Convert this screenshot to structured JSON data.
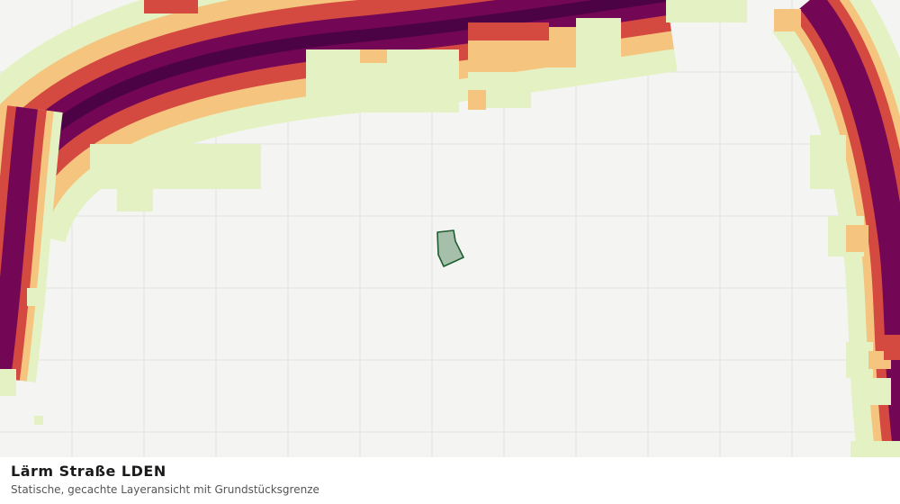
{
  "map": {
    "background_color": "#f4f5f3",
    "grid_color": "#e2e4e0",
    "noise_colors": {
      "very_low": "#e4f2c3",
      "low": "#f5c47e",
      "medium": "#d44a40",
      "high": "#740656",
      "very_high": "#4c0346"
    },
    "parcel_fill": "#a6bfaa",
    "parcel_stroke": "#1e5e2e"
  },
  "footer": {
    "title": "Lärm Straße LDEN",
    "subtitle": "Statische, gecachte Layeransicht mit Grundstücksgrenze"
  }
}
